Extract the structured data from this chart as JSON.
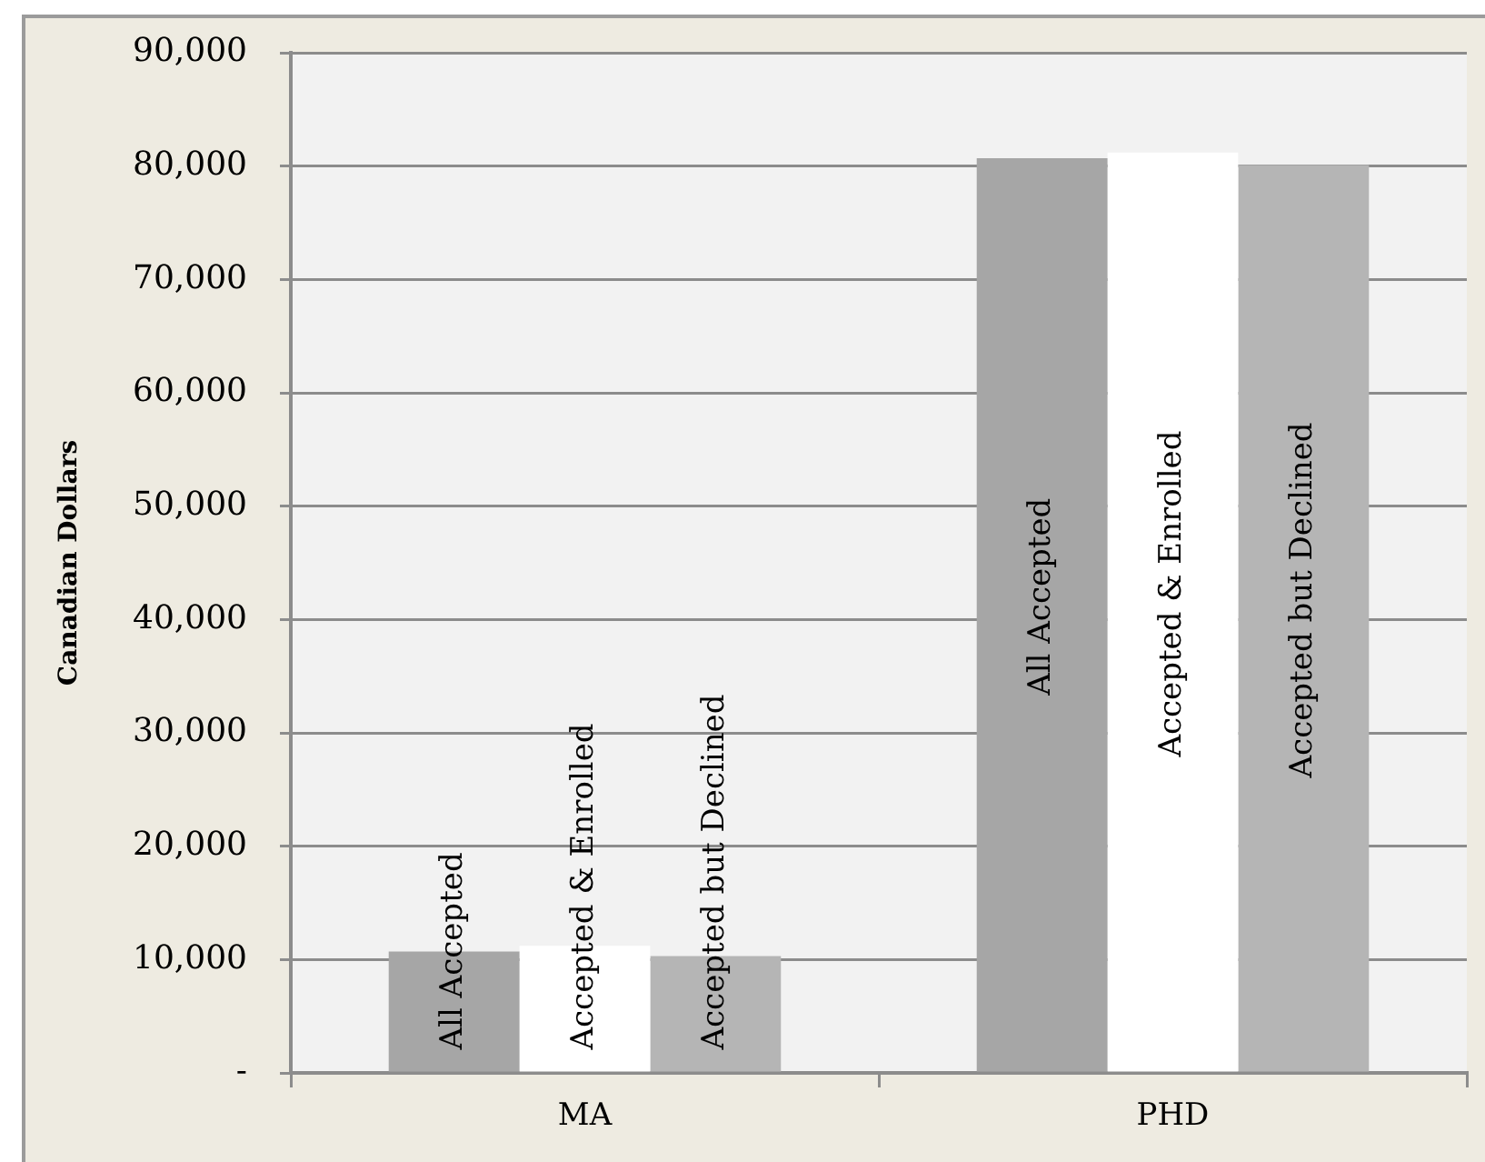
{
  "chart_data": {
    "type": "bar",
    "ylabel": "Canadian Dollars",
    "categories": [
      "MA",
      "PHD"
    ],
    "series": [
      {
        "name": "All Accepted",
        "color": "#a6a6a6",
        "values": [
          10700,
          80700
        ]
      },
      {
        "name": "Accepted & Enrolled",
        "color": "#ffffff",
        "values": [
          11200,
          81200
        ]
      },
      {
        "name": "Accepted but Declined",
        "color": "#b5b5b5",
        "values": [
          10300,
          80100
        ]
      }
    ],
    "ylim": [
      0,
      90000
    ],
    "yticks": [
      {
        "value": 0,
        "label": "-"
      },
      {
        "value": 10000,
        "label": "10,000"
      },
      {
        "value": 20000,
        "label": "20,000"
      },
      {
        "value": 30000,
        "label": "30,000"
      },
      {
        "value": 40000,
        "label": "40,000"
      },
      {
        "value": 50000,
        "label": "50,000"
      },
      {
        "value": 60000,
        "label": "60,000"
      },
      {
        "value": 70000,
        "label": "70,000"
      },
      {
        "value": 80000,
        "label": "80,000"
      },
      {
        "value": 90000,
        "label": "90,000"
      }
    ],
    "grid": "y",
    "legend": false
  }
}
